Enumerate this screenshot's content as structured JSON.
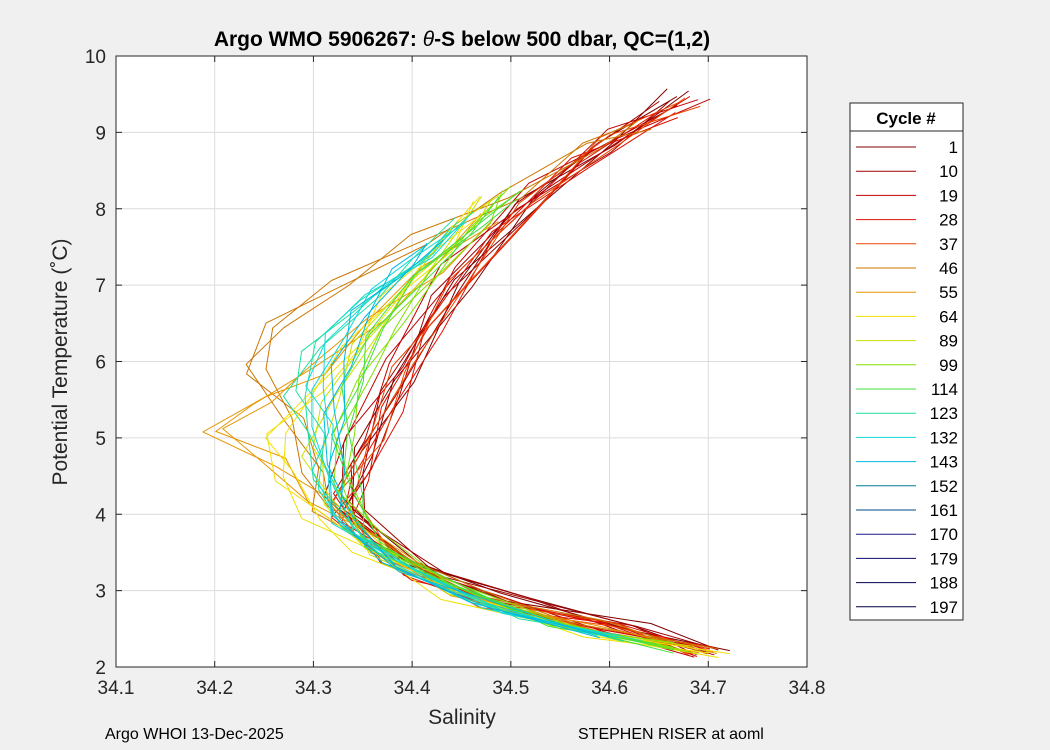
{
  "chart_data": {
    "type": "line",
    "title_prefix": "Argo WMO 5906267: ",
    "title_theta": "θ",
    "title_suffix": "-S below 500 dbar,  QC=(1,2)",
    "xlabel": "Salinity",
    "ylabel": "Potential Temperature (˚C)",
    "xlim": [
      34.1,
      34.8
    ],
    "ylim": [
      2,
      10
    ],
    "x_ticks": [
      "34.1",
      "34.2",
      "34.3",
      "34.4",
      "34.5",
      "34.6",
      "34.7",
      "34.8"
    ],
    "y_ticks": [
      "2",
      "3",
      "4",
      "5",
      "6",
      "7",
      "8",
      "9",
      "10"
    ],
    "grid": true,
    "legend_title": "Cycle #",
    "legend_placement": "right-outside",
    "series": [
      {
        "name": "1",
        "color": "#800000",
        "values": [
          [
            34.71,
            2.25
          ],
          [
            34.63,
            2.5
          ],
          [
            34.5,
            2.9
          ],
          [
            34.4,
            3.4
          ],
          [
            34.33,
            4.1
          ],
          [
            34.35,
            4.8
          ],
          [
            34.39,
            5.8
          ],
          [
            34.45,
            7.0
          ],
          [
            34.52,
            8.1
          ],
          [
            34.6,
            8.9
          ],
          [
            34.67,
            9.5
          ]
        ]
      },
      {
        "name": "10",
        "color": "#a00000",
        "values": [
          [
            34.7,
            2.22
          ],
          [
            34.62,
            2.48
          ],
          [
            34.52,
            2.85
          ],
          [
            34.42,
            3.3
          ],
          [
            34.34,
            4.0
          ],
          [
            34.35,
            4.6
          ],
          [
            34.38,
            5.6
          ],
          [
            34.43,
            6.8
          ],
          [
            34.51,
            8.0
          ],
          [
            34.59,
            8.8
          ],
          [
            34.66,
            9.35
          ]
        ]
      },
      {
        "name": "19",
        "color": "#c00000",
        "values": [
          [
            34.69,
            2.2
          ],
          [
            34.6,
            2.45
          ],
          [
            34.48,
            2.9
          ],
          [
            34.38,
            3.4
          ],
          [
            34.32,
            4.2
          ],
          [
            34.34,
            5.0
          ],
          [
            34.38,
            6.0
          ],
          [
            34.44,
            7.2
          ],
          [
            34.53,
            8.3
          ],
          [
            34.61,
            9.0
          ],
          [
            34.69,
            9.4
          ]
        ]
      },
      {
        "name": "28",
        "color": "#dd1000",
        "values": [
          [
            34.7,
            2.2
          ],
          [
            34.6,
            2.5
          ],
          [
            34.5,
            2.8
          ],
          [
            34.4,
            3.2
          ],
          [
            34.33,
            3.9
          ],
          [
            34.35,
            4.5
          ],
          [
            34.38,
            5.4
          ],
          [
            34.42,
            6.4
          ],
          [
            34.49,
            7.7
          ],
          [
            34.57,
            8.6
          ],
          [
            34.66,
            9.2
          ]
        ]
      },
      {
        "name": "37",
        "color": "#ee4400",
        "values": [
          [
            34.69,
            2.2
          ],
          [
            34.6,
            2.5
          ],
          [
            34.48,
            2.85
          ],
          [
            34.38,
            3.4
          ],
          [
            34.33,
            4.2
          ],
          [
            34.36,
            5.0
          ],
          [
            34.39,
            5.9
          ],
          [
            34.45,
            7.0
          ],
          [
            34.52,
            8.1
          ],
          [
            34.6,
            8.9
          ],
          [
            34.68,
            9.38
          ]
        ]
      },
      {
        "name": "46",
        "color": "#cc7700",
        "values": [
          [
            34.7,
            2.18
          ],
          [
            34.58,
            2.55
          ],
          [
            34.46,
            3.0
          ],
          [
            34.37,
            3.5
          ],
          [
            34.31,
            4.1
          ],
          [
            34.3,
            4.6
          ],
          [
            34.28,
            5.2
          ],
          [
            34.24,
            5.9
          ],
          [
            34.26,
            6.5
          ],
          [
            34.33,
            7.0
          ],
          [
            34.41,
            7.6
          ],
          [
            34.5,
            8.2
          ],
          [
            34.58,
            8.8
          ],
          [
            34.63,
            9.1
          ]
        ]
      },
      {
        "name": "55",
        "color": "#e69500",
        "values": [
          [
            34.7,
            2.15
          ],
          [
            34.58,
            2.5
          ],
          [
            34.45,
            3.0
          ],
          [
            34.36,
            3.6
          ],
          [
            34.3,
            4.2
          ],
          [
            34.26,
            4.7
          ],
          [
            34.2,
            5.05
          ],
          [
            34.25,
            5.5
          ],
          [
            34.3,
            5.9
          ],
          [
            34.36,
            6.5
          ],
          [
            34.42,
            7.2
          ],
          [
            34.48,
            7.9
          ]
        ]
      },
      {
        "name": "64",
        "color": "#f0e000",
        "values": [
          [
            34.71,
            2.12
          ],
          [
            34.58,
            2.45
          ],
          [
            34.44,
            2.95
          ],
          [
            34.35,
            3.5
          ],
          [
            34.3,
            4.0
          ],
          [
            34.27,
            4.5
          ],
          [
            34.26,
            5.0
          ],
          [
            34.3,
            5.6
          ],
          [
            34.34,
            6.2
          ],
          [
            34.38,
            6.8
          ],
          [
            34.43,
            7.5
          ],
          [
            34.47,
            8.1
          ]
        ]
      },
      {
        "name": "89",
        "color": "#c8e000",
        "values": [
          [
            34.68,
            2.2
          ],
          [
            34.56,
            2.55
          ],
          [
            34.44,
            3.0
          ],
          [
            34.36,
            3.5
          ],
          [
            34.32,
            4.2
          ],
          [
            34.3,
            4.8
          ],
          [
            34.32,
            5.5
          ],
          [
            34.35,
            6.3
          ],
          [
            34.4,
            7.0
          ],
          [
            34.45,
            7.7
          ],
          [
            34.48,
            8.2
          ]
        ]
      },
      {
        "name": "99",
        "color": "#80e000",
        "values": [
          [
            34.67,
            2.25
          ],
          [
            34.55,
            2.6
          ],
          [
            34.43,
            3.1
          ],
          [
            34.36,
            3.7
          ],
          [
            34.33,
            4.4
          ],
          [
            34.33,
            5.0
          ],
          [
            34.35,
            5.8
          ],
          [
            34.38,
            6.5
          ],
          [
            34.43,
            7.2
          ],
          [
            34.47,
            7.8
          ],
          [
            34.5,
            8.3
          ]
        ]
      },
      {
        "name": "114",
        "color": "#40e040",
        "values": [
          [
            34.66,
            2.25
          ],
          [
            34.54,
            2.6
          ],
          [
            34.43,
            3.1
          ],
          [
            34.36,
            3.6
          ],
          [
            34.34,
            4.3
          ],
          [
            34.33,
            5.0
          ],
          [
            34.34,
            5.7
          ],
          [
            34.36,
            6.4
          ],
          [
            34.41,
            7.1
          ],
          [
            34.46,
            7.7
          ],
          [
            34.5,
            8.2
          ]
        ]
      },
      {
        "name": "123",
        "color": "#20e0a0",
        "values": [
          [
            34.62,
            2.4
          ],
          [
            34.5,
            2.7
          ],
          [
            34.4,
            3.2
          ],
          [
            34.34,
            3.8
          ],
          [
            34.31,
            4.4
          ],
          [
            34.3,
            5.0
          ],
          [
            34.28,
            5.6
          ],
          [
            34.3,
            6.2
          ],
          [
            34.36,
            6.8
          ],
          [
            34.41,
            7.4
          ],
          [
            34.45,
            7.9
          ]
        ]
      },
      {
        "name": "132",
        "color": "#10d8d8",
        "values": [
          [
            34.6,
            2.45
          ],
          [
            34.48,
            2.75
          ],
          [
            34.39,
            3.3
          ],
          [
            34.33,
            3.9
          ],
          [
            34.31,
            4.5
          ],
          [
            34.31,
            5.1
          ],
          [
            34.3,
            5.7
          ],
          [
            34.32,
            6.3
          ],
          [
            34.36,
            6.9
          ],
          [
            34.41,
            7.4
          ],
          [
            34.45,
            7.8
          ]
        ]
      },
      {
        "name": "143",
        "color": "#00b8e0",
        "values": [
          [
            34.59,
            2.45
          ],
          [
            34.47,
            2.8
          ],
          [
            34.38,
            3.3
          ],
          [
            34.33,
            4.0
          ],
          [
            34.32,
            4.6
          ],
          [
            34.32,
            5.3
          ],
          [
            34.33,
            6.0
          ],
          [
            34.35,
            6.6
          ],
          [
            34.39,
            7.2
          ],
          [
            34.42,
            7.6
          ]
        ]
      },
      {
        "name": "152",
        "color": "#007a90",
        "values": []
      },
      {
        "name": "161",
        "color": "#004a8a",
        "values": []
      },
      {
        "name": "170",
        "color": "#1a1a90",
        "values": []
      },
      {
        "name": "179",
        "color": "#0a0a70",
        "values": []
      },
      {
        "name": "188",
        "color": "#000050",
        "values": []
      },
      {
        "name": "197",
        "color": "#000040",
        "values": []
      }
    ]
  },
  "footer": {
    "left": "Argo WHOI 13-Dec-2025",
    "right": "STEPHEN RISER at aoml"
  }
}
